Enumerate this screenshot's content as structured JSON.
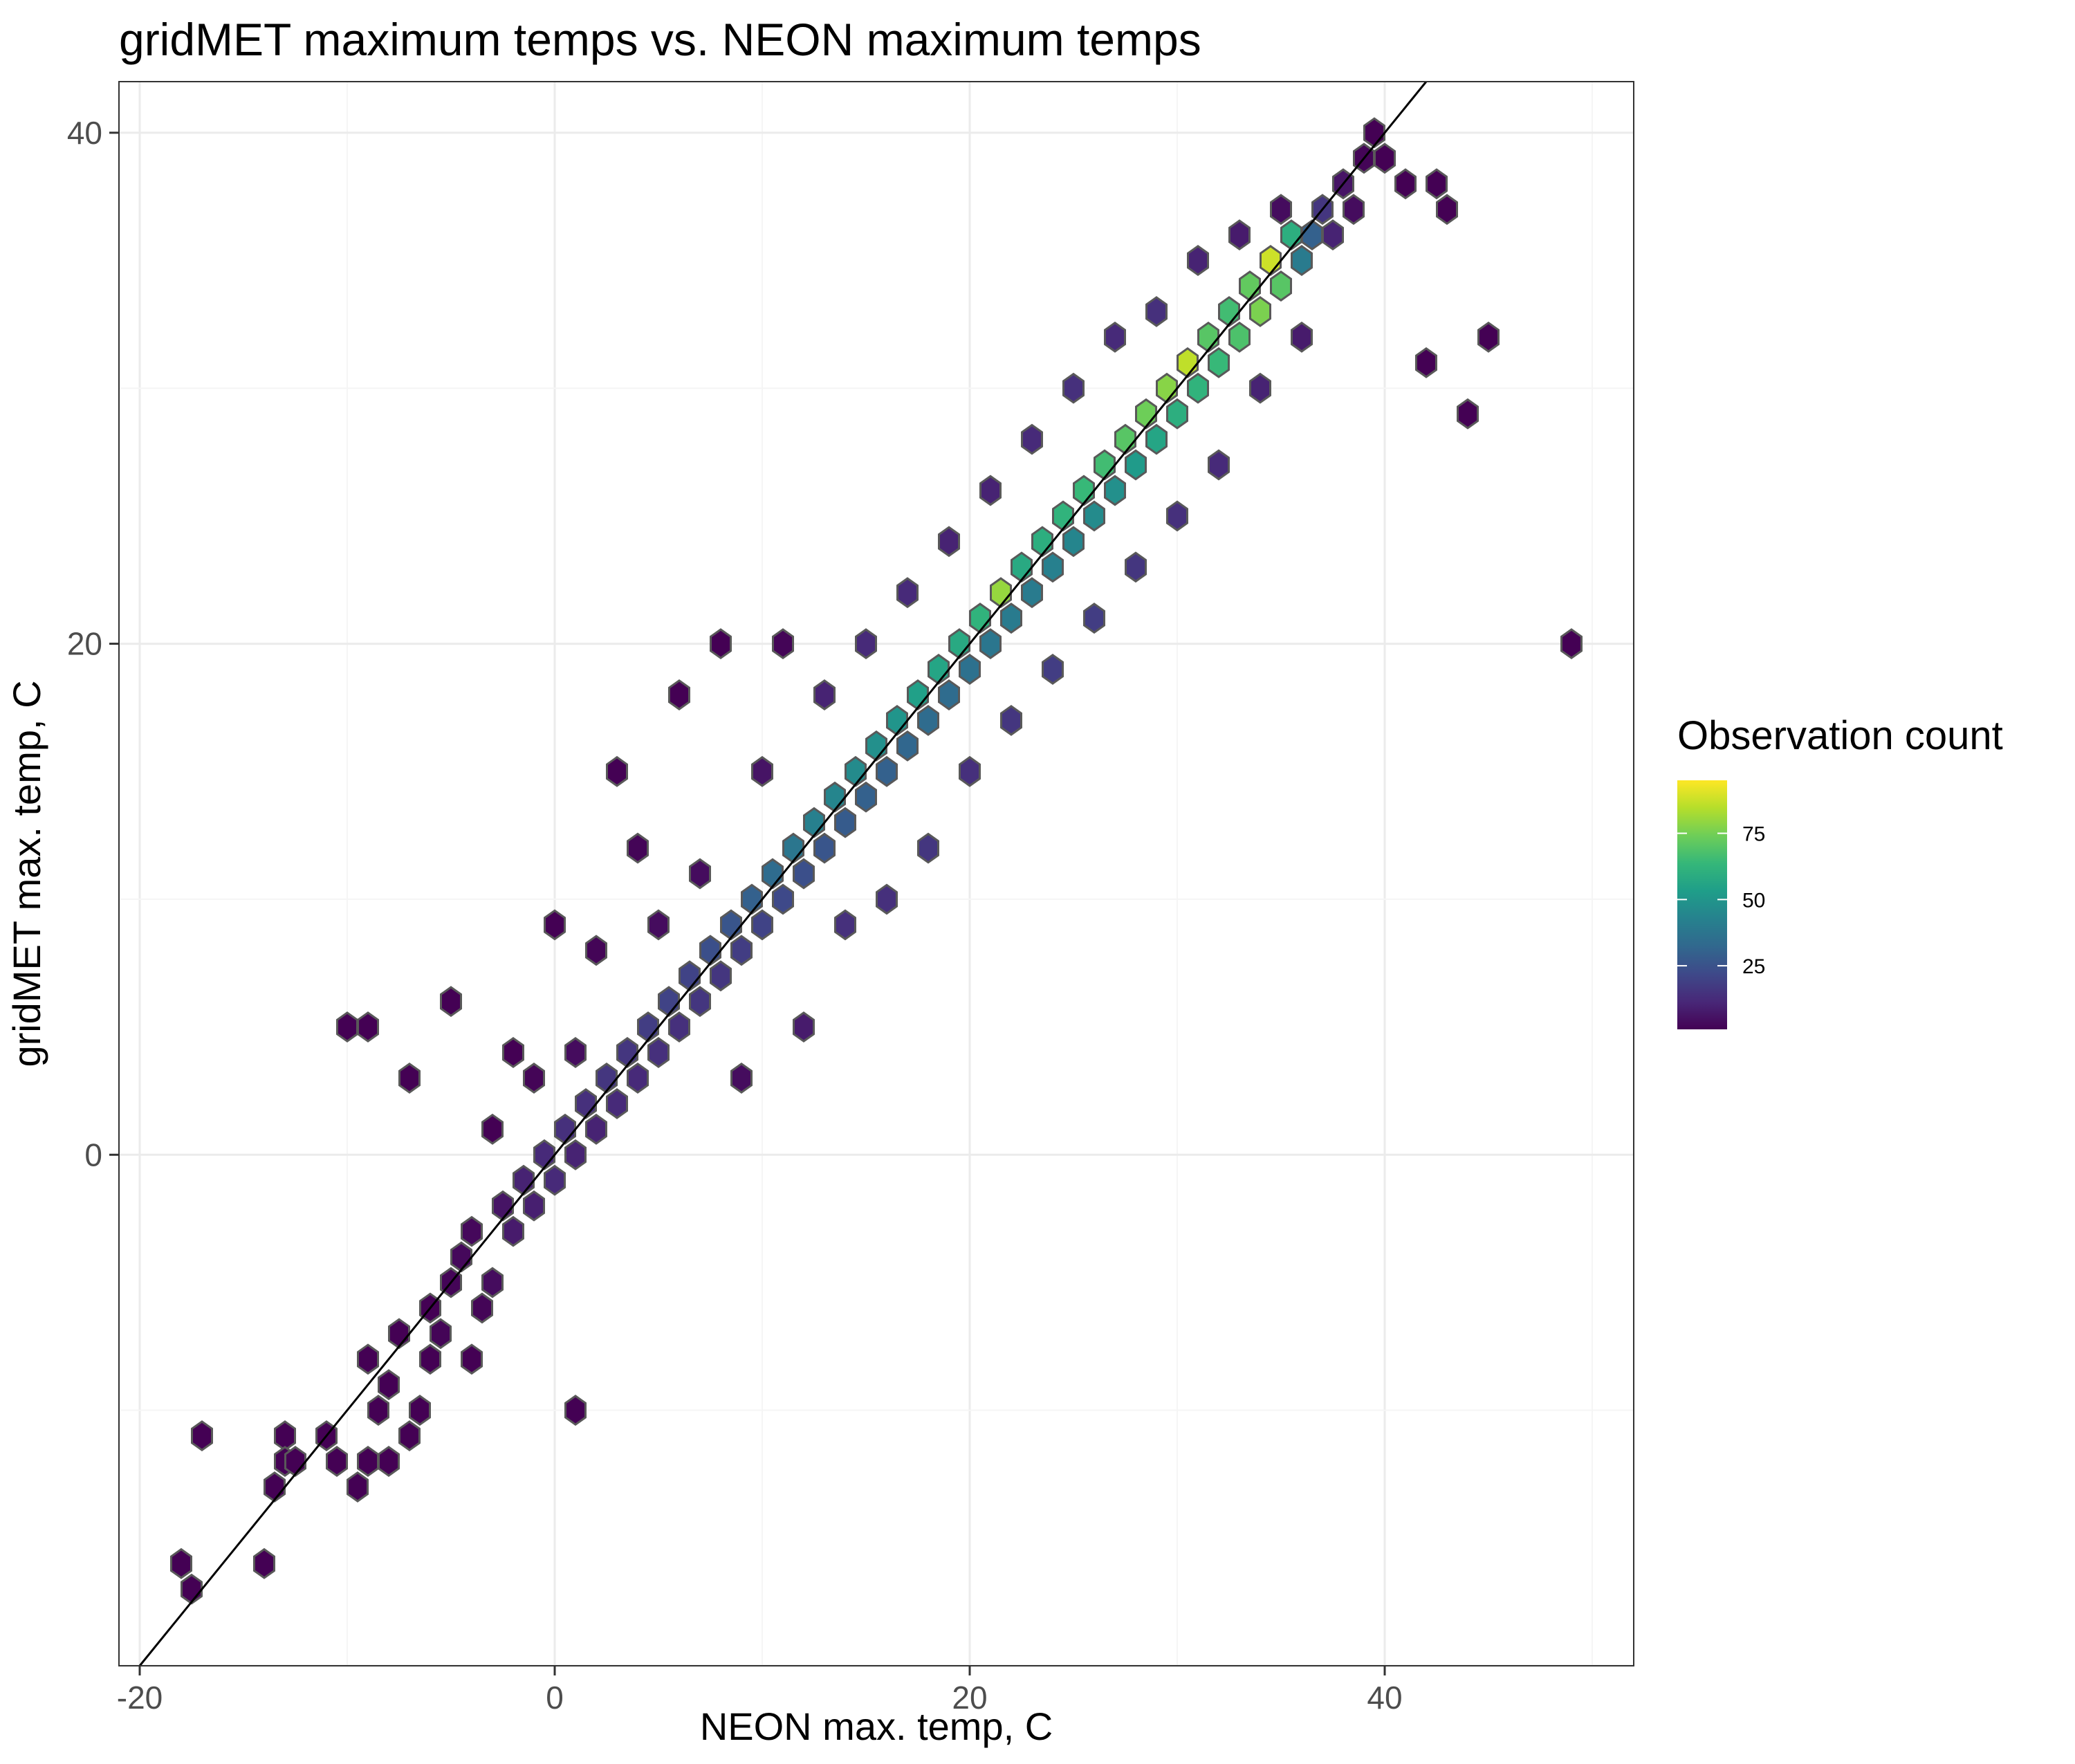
{
  "chart_data": {
    "type": "hexbin",
    "title": "gridMET maximum temps vs. NEON maximum temps",
    "xlabel": "NEON max. temp, C",
    "ylabel": "gridMET max. temp, C",
    "xlim": [
      -21,
      52
    ],
    "ylim": [
      -20,
      42
    ],
    "xticks": [
      -20,
      0,
      20,
      40
    ],
    "yticks": [
      0,
      20,
      40
    ],
    "xtick_labels": [
      "-20",
      "0",
      "20",
      "40"
    ],
    "ytick_labels": [
      "0",
      "20",
      "40"
    ],
    "grid": true,
    "hex_size": 0.9,
    "reference_line": {
      "label": "",
      "slope": 1,
      "intercept": 0,
      "color": "#000000"
    },
    "legend": {
      "title": "Observation count",
      "position": "right",
      "min": 1,
      "max": 95,
      "ticks": [
        25,
        50,
        75
      ],
      "tick_labels": [
        "25",
        "50",
        "75"
      ]
    },
    "colorscale": [
      "#440154",
      "#482878",
      "#3e4989",
      "#31688e",
      "#26828e",
      "#1f9e89",
      "#35b779",
      "#6ece58",
      "#b5de2b",
      "#fde725"
    ],
    "hex_border_color": "#595959",
    "points": [
      [
        -18,
        -16,
        1
      ],
      [
        -17.5,
        -17,
        1
      ],
      [
        -17,
        -11,
        1
      ],
      [
        -14,
        -16,
        1
      ],
      [
        -13.5,
        -13,
        1
      ],
      [
        -13,
        -11,
        1
      ],
      [
        -13,
        -12,
        1
      ],
      [
        -12.5,
        -12,
        1
      ],
      [
        -11,
        -11,
        1
      ],
      [
        -10.5,
        -12,
        1
      ],
      [
        -10,
        5,
        1
      ],
      [
        -9.5,
        -13,
        1
      ],
      [
        -9,
        5,
        1
      ],
      [
        -9,
        -12,
        1
      ],
      [
        -9,
        -8,
        1
      ],
      [
        -8.5,
        -10,
        1
      ],
      [
        -8,
        -12,
        1
      ],
      [
        -8,
        -9,
        1
      ],
      [
        -7.5,
        -7,
        1
      ],
      [
        -7,
        3,
        1
      ],
      [
        -7,
        -11,
        1
      ],
      [
        -6.5,
        -10,
        1
      ],
      [
        -6,
        -8,
        1
      ],
      [
        -6,
        -6,
        1
      ],
      [
        -5.5,
        -7,
        2
      ],
      [
        -5,
        -5,
        2
      ],
      [
        -5,
        6,
        1
      ],
      [
        -4.5,
        -4,
        3
      ],
      [
        -4,
        -3,
        3
      ],
      [
        -4,
        -8,
        1
      ],
      [
        -3.5,
        -6,
        2
      ],
      [
        -3,
        -5,
        4
      ],
      [
        -3,
        1,
        1
      ],
      [
        -2.5,
        -2,
        6
      ],
      [
        -2,
        -3,
        8
      ],
      [
        -2,
        4,
        1
      ],
      [
        -1.5,
        -1,
        10
      ],
      [
        -1,
        -2,
        9
      ],
      [
        -1,
        3,
        2
      ],
      [
        -0.5,
        0,
        12
      ],
      [
        0,
        -1,
        12
      ],
      [
        0,
        9,
        1
      ],
      [
        0.5,
        1,
        14
      ],
      [
        1,
        0,
        10
      ],
      [
        1,
        4,
        4
      ],
      [
        1,
        -10,
        1
      ],
      [
        1.5,
        2,
        14
      ],
      [
        2,
        1,
        10
      ],
      [
        2,
        8,
        2
      ],
      [
        2.5,
        3,
        16
      ],
      [
        3,
        2,
        12
      ],
      [
        3,
        15,
        1
      ],
      [
        3.5,
        4,
        16
      ],
      [
        4,
        3,
        12
      ],
      [
        4,
        12,
        2
      ],
      [
        4.5,
        5,
        18
      ],
      [
        5,
        4,
        14
      ],
      [
        5,
        9,
        4
      ],
      [
        5.5,
        6,
        20
      ],
      [
        6,
        5,
        14
      ],
      [
        6,
        18,
        1
      ],
      [
        6.5,
        7,
        20
      ],
      [
        7,
        6,
        16
      ],
      [
        7,
        11,
        4
      ],
      [
        7.5,
        8,
        24
      ],
      [
        8,
        7,
        16
      ],
      [
        8,
        20,
        1
      ],
      [
        8.5,
        9,
        26
      ],
      [
        9,
        8,
        18
      ],
      [
        9,
        3,
        4
      ],
      [
        9.5,
        10,
        30
      ],
      [
        10,
        9,
        20
      ],
      [
        10,
        15,
        6
      ],
      [
        10.5,
        11,
        34
      ],
      [
        11,
        10,
        22
      ],
      [
        11,
        20,
        2
      ],
      [
        11.5,
        12,
        38
      ],
      [
        12,
        11,
        24
      ],
      [
        12,
        5,
        8
      ],
      [
        12.5,
        13,
        42
      ],
      [
        13,
        12,
        26
      ],
      [
        13,
        18,
        10
      ],
      [
        13.5,
        14,
        44
      ],
      [
        14,
        13,
        28
      ],
      [
        14,
        9,
        14
      ],
      [
        14.5,
        15,
        46
      ],
      [
        15,
        14,
        30
      ],
      [
        15,
        20,
        12
      ],
      [
        15.5,
        16,
        48
      ],
      [
        16,
        15,
        30
      ],
      [
        16,
        10,
        14
      ],
      [
        16.5,
        17,
        50
      ],
      [
        17,
        16,
        32
      ],
      [
        17,
        22,
        12
      ],
      [
        17.5,
        18,
        54
      ],
      [
        18,
        17,
        34
      ],
      [
        18,
        12,
        16
      ],
      [
        18.5,
        19,
        56
      ],
      [
        19,
        18,
        34
      ],
      [
        19,
        24,
        10
      ],
      [
        19.5,
        20,
        58
      ],
      [
        20,
        19,
        36
      ],
      [
        20,
        15,
        14
      ],
      [
        20.5,
        21,
        62
      ],
      [
        21,
        20,
        38
      ],
      [
        21,
        26,
        10
      ],
      [
        21.5,
        22,
        80
      ],
      [
        22,
        21,
        40
      ],
      [
        22,
        17,
        16
      ],
      [
        22.5,
        23,
        58
      ],
      [
        23,
        22,
        40
      ],
      [
        23,
        28,
        12
      ],
      [
        23.5,
        24,
        60
      ],
      [
        24,
        23,
        42
      ],
      [
        24,
        19,
        18
      ],
      [
        24.5,
        25,
        62
      ],
      [
        25,
        24,
        44
      ],
      [
        25,
        30,
        14
      ],
      [
        25.5,
        26,
        64
      ],
      [
        26,
        25,
        46
      ],
      [
        26,
        21,
        18
      ],
      [
        26.5,
        27,
        66
      ],
      [
        27,
        26,
        48
      ],
      [
        27,
        32,
        12
      ],
      [
        27.5,
        28,
        70
      ],
      [
        28,
        27,
        52
      ],
      [
        28,
        23,
        16
      ],
      [
        28.5,
        29,
        74
      ],
      [
        29,
        28,
        56
      ],
      [
        29,
        33,
        14
      ],
      [
        29.5,
        30,
        78
      ],
      [
        30,
        29,
        60
      ],
      [
        30,
        25,
        14
      ],
      [
        30.5,
        31,
        86
      ],
      [
        31,
        30,
        62
      ],
      [
        31,
        35,
        10
      ],
      [
        31.5,
        32,
        70
      ],
      [
        32,
        31,
        64
      ],
      [
        32,
        27,
        12
      ],
      [
        32.5,
        33,
        66
      ],
      [
        33,
        32,
        68
      ],
      [
        33,
        36,
        8
      ],
      [
        33.5,
        34,
        72
      ],
      [
        34,
        33,
        76
      ],
      [
        34,
        30,
        10
      ],
      [
        34.5,
        35,
        88
      ],
      [
        35,
        34,
        70
      ],
      [
        35,
        37,
        4
      ],
      [
        35.5,
        36,
        60
      ],
      [
        36,
        35,
        40
      ],
      [
        36,
        32,
        8
      ],
      [
        36.5,
        36,
        30
      ],
      [
        37,
        37,
        16
      ],
      [
        37.5,
        36,
        10
      ],
      [
        38,
        38,
        6
      ],
      [
        38.5,
        37,
        4
      ],
      [
        39,
        39,
        2
      ],
      [
        39.5,
        40,
        1
      ],
      [
        40,
        39,
        1
      ],
      [
        41,
        38,
        1
      ],
      [
        42,
        31,
        1
      ],
      [
        42.5,
        38,
        1
      ],
      [
        43,
        37,
        1
      ],
      [
        44,
        29,
        1
      ],
      [
        45,
        32,
        1
      ],
      [
        49,
        20,
        1
      ]
    ]
  }
}
